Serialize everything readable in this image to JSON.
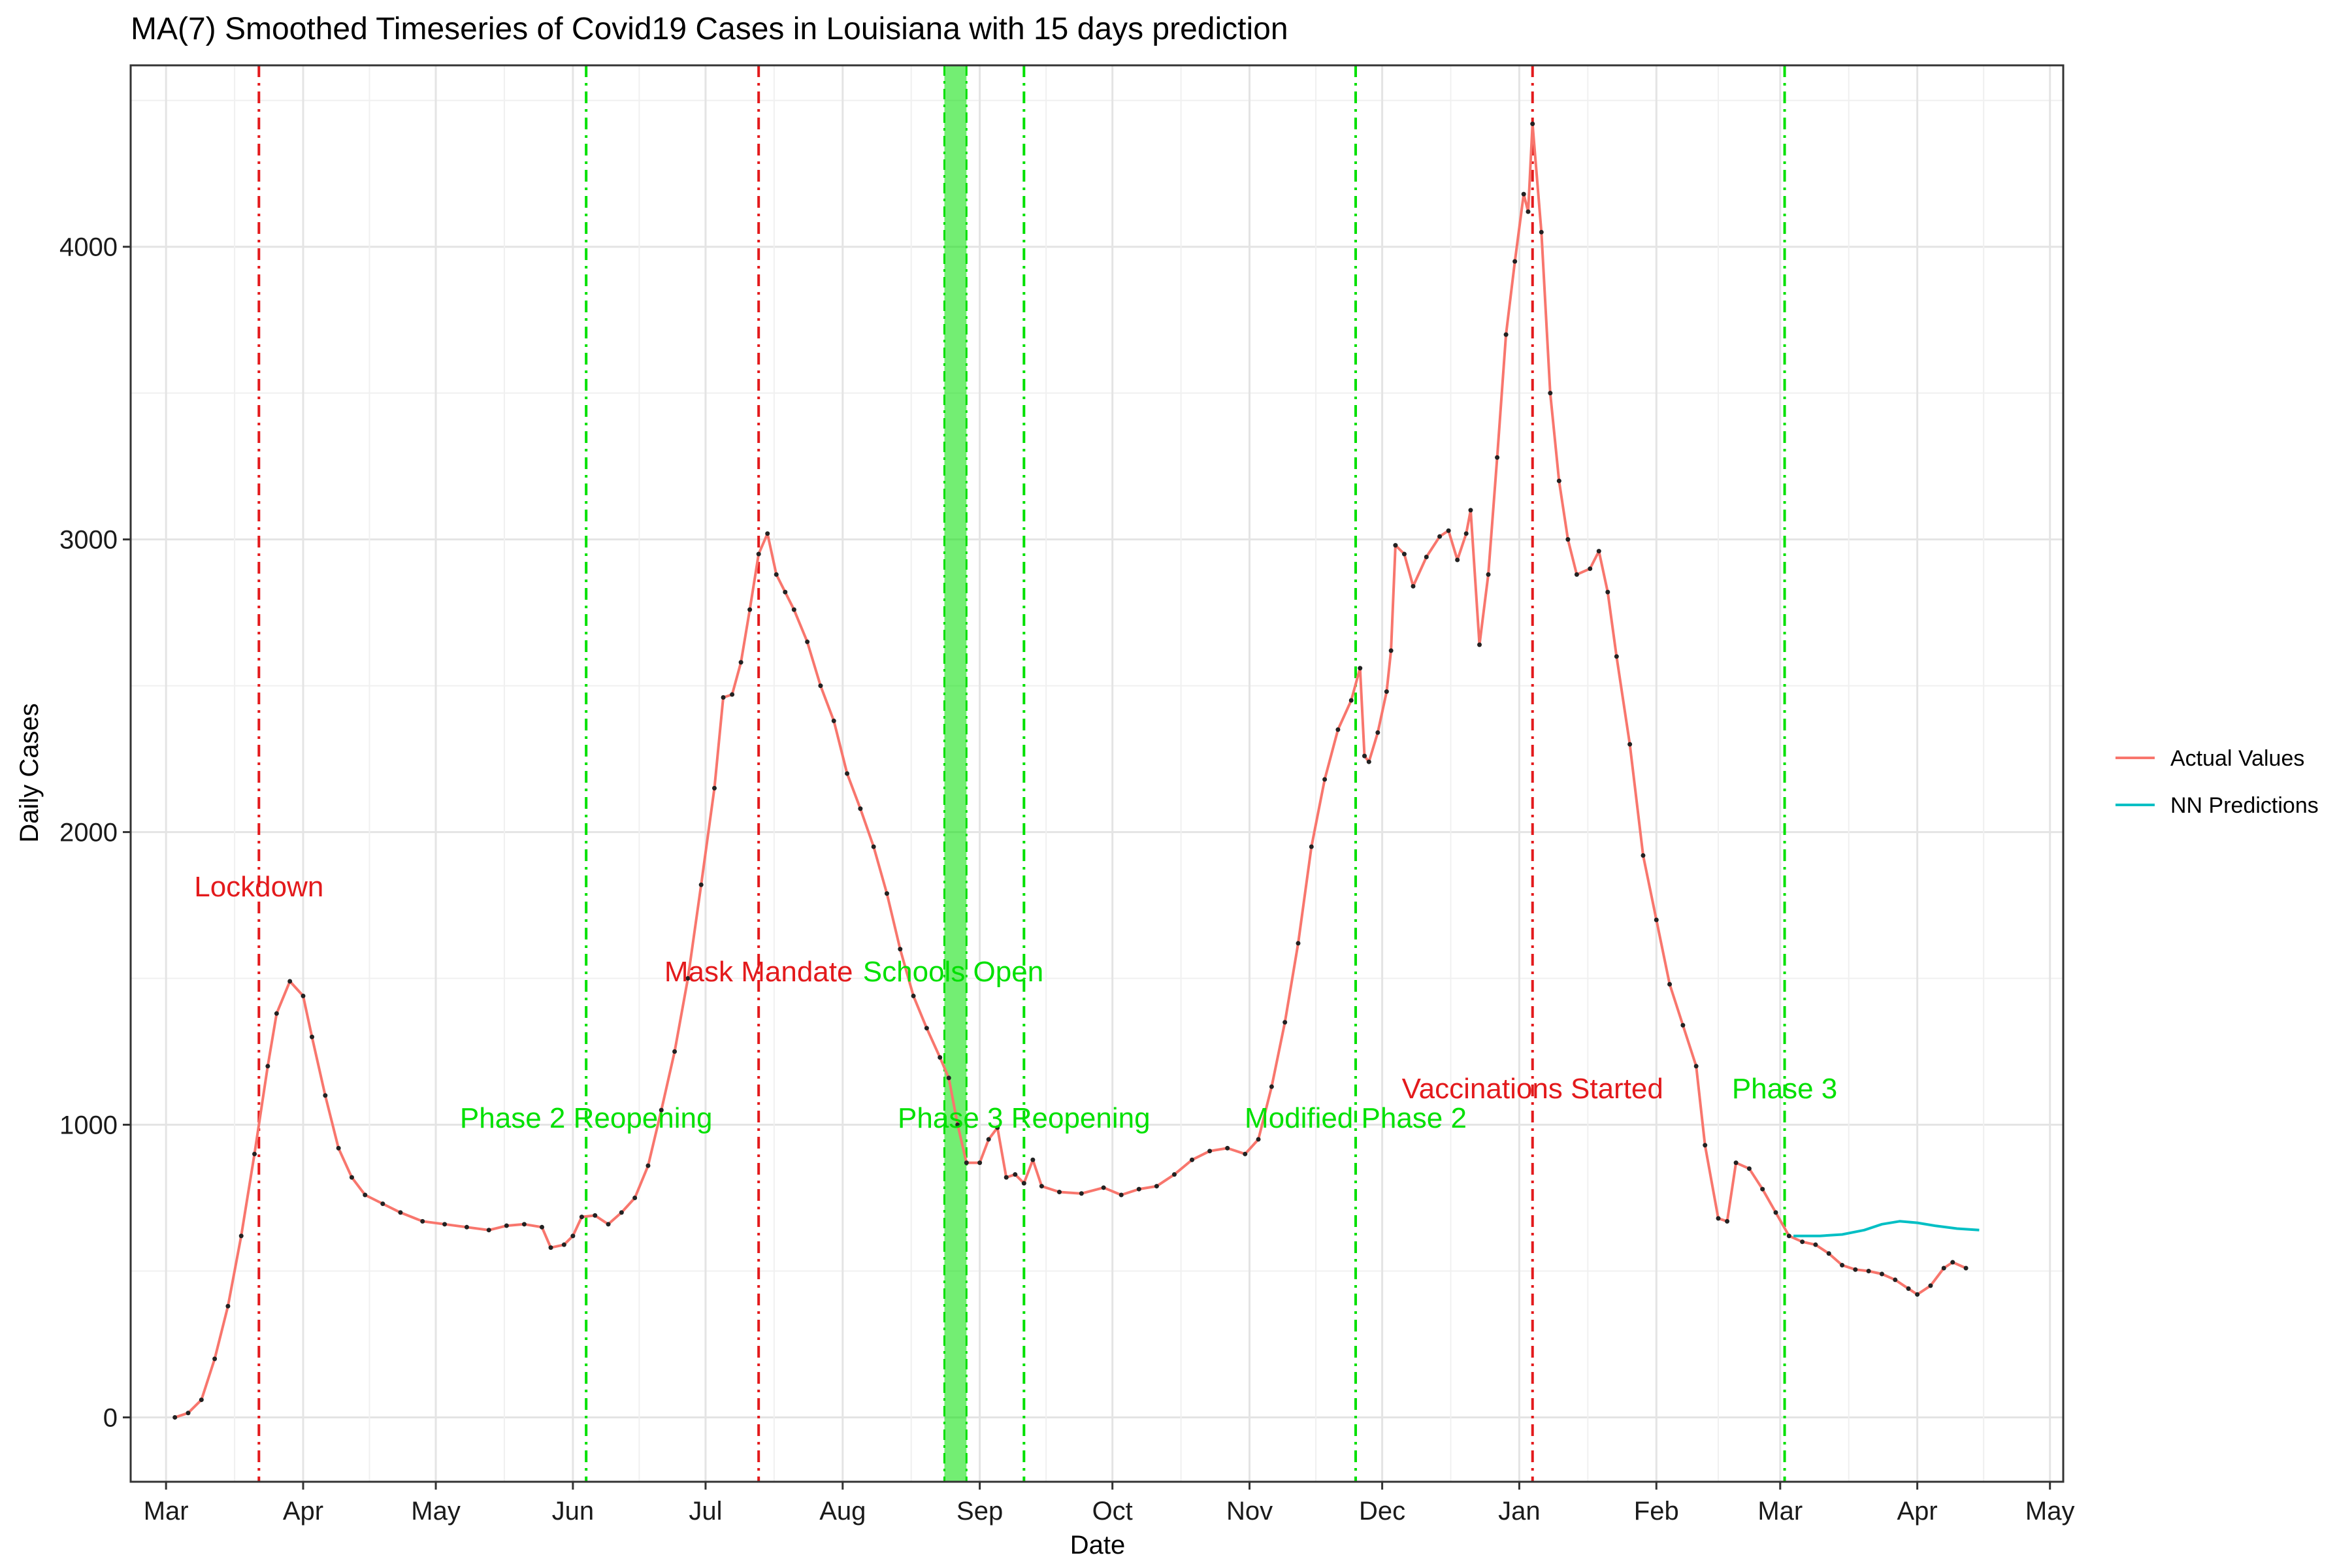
{
  "chart_data": {
    "type": "line",
    "title": "MA(7) Smoothed Timeseries of Covid19 Cases in Louisiana with 15 days prediction",
    "xlabel": "Date",
    "ylabel": "Daily Cases",
    "x_range": [
      "2020-02-22",
      "2021-05-04"
    ],
    "ylim": [
      -220,
      4620
    ],
    "grid": true,
    "legend_position": "right",
    "x_ticks": [
      {
        "date": "2020-03-01",
        "label": "Mar"
      },
      {
        "date": "2020-04-01",
        "label": "Apr"
      },
      {
        "date": "2020-05-01",
        "label": "May"
      },
      {
        "date": "2020-06-01",
        "label": "Jun"
      },
      {
        "date": "2020-07-01",
        "label": "Jul"
      },
      {
        "date": "2020-08-01",
        "label": "Aug"
      },
      {
        "date": "2020-09-01",
        "label": "Sep"
      },
      {
        "date": "2020-10-01",
        "label": "Oct"
      },
      {
        "date": "2020-11-01",
        "label": "Nov"
      },
      {
        "date": "2020-12-01",
        "label": "Dec"
      },
      {
        "date": "2021-01-01",
        "label": "Jan"
      },
      {
        "date": "2021-02-01",
        "label": "Feb"
      },
      {
        "date": "2021-03-01",
        "label": "Mar"
      },
      {
        "date": "2021-04-01",
        "label": "Apr"
      },
      {
        "date": "2021-05-01",
        "label": "May"
      }
    ],
    "y_ticks": [
      0,
      1000,
      2000,
      3000,
      4000
    ],
    "series": [
      {
        "name": "Actual Values",
        "color": "#F8766D",
        "markers": true,
        "points": [
          [
            "2020-03-03",
            0
          ],
          [
            "2020-03-06",
            15
          ],
          [
            "2020-03-09",
            60
          ],
          [
            "2020-03-12",
            200
          ],
          [
            "2020-03-15",
            380
          ],
          [
            "2020-03-18",
            620
          ],
          [
            "2020-03-21",
            900
          ],
          [
            "2020-03-24",
            1200
          ],
          [
            "2020-03-26",
            1380
          ],
          [
            "2020-03-29",
            1490
          ],
          [
            "2020-04-01",
            1440
          ],
          [
            "2020-04-03",
            1300
          ],
          [
            "2020-04-06",
            1100
          ],
          [
            "2020-04-09",
            920
          ],
          [
            "2020-04-12",
            820
          ],
          [
            "2020-04-15",
            760
          ],
          [
            "2020-04-19",
            730
          ],
          [
            "2020-04-23",
            700
          ],
          [
            "2020-04-28",
            670
          ],
          [
            "2020-05-03",
            660
          ],
          [
            "2020-05-08",
            650
          ],
          [
            "2020-05-13",
            640
          ],
          [
            "2020-05-17",
            655
          ],
          [
            "2020-05-21",
            660
          ],
          [
            "2020-05-25",
            650
          ],
          [
            "2020-05-27",
            580
          ],
          [
            "2020-05-30",
            590
          ],
          [
            "2020-06-01",
            620
          ],
          [
            "2020-06-03",
            685
          ],
          [
            "2020-06-06",
            690
          ],
          [
            "2020-06-09",
            660
          ],
          [
            "2020-06-12",
            700
          ],
          [
            "2020-06-15",
            750
          ],
          [
            "2020-06-18",
            860
          ],
          [
            "2020-06-21",
            1050
          ],
          [
            "2020-06-24",
            1250
          ],
          [
            "2020-06-27",
            1500
          ],
          [
            "2020-06-30",
            1820
          ],
          [
            "2020-07-03",
            2150
          ],
          [
            "2020-07-05",
            2460
          ],
          [
            "2020-07-07",
            2470
          ],
          [
            "2020-07-09",
            2580
          ],
          [
            "2020-07-11",
            2760
          ],
          [
            "2020-07-13",
            2950
          ],
          [
            "2020-07-15",
            3020
          ],
          [
            "2020-07-17",
            2880
          ],
          [
            "2020-07-19",
            2820
          ],
          [
            "2020-07-21",
            2760
          ],
          [
            "2020-07-24",
            2650
          ],
          [
            "2020-07-27",
            2500
          ],
          [
            "2020-07-30",
            2380
          ],
          [
            "2020-08-02",
            2200
          ],
          [
            "2020-08-05",
            2080
          ],
          [
            "2020-08-08",
            1950
          ],
          [
            "2020-08-11",
            1790
          ],
          [
            "2020-08-14",
            1600
          ],
          [
            "2020-08-17",
            1440
          ],
          [
            "2020-08-20",
            1330
          ],
          [
            "2020-08-23",
            1230
          ],
          [
            "2020-08-25",
            1160
          ],
          [
            "2020-08-27",
            1000
          ],
          [
            "2020-08-29",
            870
          ],
          [
            "2020-09-01",
            870
          ],
          [
            "2020-09-03",
            950
          ],
          [
            "2020-09-05",
            990
          ],
          [
            "2020-09-07",
            820
          ],
          [
            "2020-09-09",
            830
          ],
          [
            "2020-09-11",
            800
          ],
          [
            "2020-09-13",
            880
          ],
          [
            "2020-09-15",
            790
          ],
          [
            "2020-09-19",
            770
          ],
          [
            "2020-09-24",
            765
          ],
          [
            "2020-09-29",
            785
          ],
          [
            "2020-10-03",
            760
          ],
          [
            "2020-10-07",
            780
          ],
          [
            "2020-10-11",
            790
          ],
          [
            "2020-10-15",
            830
          ],
          [
            "2020-10-19",
            880
          ],
          [
            "2020-10-23",
            910
          ],
          [
            "2020-10-27",
            920
          ],
          [
            "2020-10-31",
            900
          ],
          [
            "2020-11-03",
            950
          ],
          [
            "2020-11-06",
            1130
          ],
          [
            "2020-11-09",
            1350
          ],
          [
            "2020-11-12",
            1620
          ],
          [
            "2020-11-15",
            1950
          ],
          [
            "2020-11-18",
            2180
          ],
          [
            "2020-11-21",
            2350
          ],
          [
            "2020-11-24",
            2450
          ],
          [
            "2020-11-26",
            2560
          ],
          [
            "2020-11-27",
            2260
          ],
          [
            "2020-11-28",
            2240
          ],
          [
            "2020-11-30",
            2340
          ],
          [
            "2020-12-02",
            2480
          ],
          [
            "2020-12-03",
            2620
          ],
          [
            "2020-12-04",
            2980
          ],
          [
            "2020-12-06",
            2950
          ],
          [
            "2020-12-08",
            2840
          ],
          [
            "2020-12-11",
            2940
          ],
          [
            "2020-12-14",
            3010
          ],
          [
            "2020-12-16",
            3030
          ],
          [
            "2020-12-18",
            2930
          ],
          [
            "2020-12-20",
            3020
          ],
          [
            "2020-12-21",
            3100
          ],
          [
            "2020-12-23",
            2640
          ],
          [
            "2020-12-25",
            2880
          ],
          [
            "2020-12-27",
            3280
          ],
          [
            "2020-12-29",
            3700
          ],
          [
            "2020-12-31",
            3950
          ],
          [
            "2021-01-02",
            4180
          ],
          [
            "2021-01-03",
            4120
          ],
          [
            "2021-01-04",
            4420
          ],
          [
            "2021-01-06",
            4050
          ],
          [
            "2021-01-08",
            3500
          ],
          [
            "2021-01-10",
            3200
          ],
          [
            "2021-01-12",
            3000
          ],
          [
            "2021-01-14",
            2880
          ],
          [
            "2021-01-17",
            2900
          ],
          [
            "2021-01-19",
            2960
          ],
          [
            "2021-01-21",
            2820
          ],
          [
            "2021-01-23",
            2600
          ],
          [
            "2021-01-26",
            2300
          ],
          [
            "2021-01-29",
            1920
          ],
          [
            "2021-02-01",
            1700
          ],
          [
            "2021-02-04",
            1480
          ],
          [
            "2021-02-07",
            1340
          ],
          [
            "2021-02-10",
            1200
          ],
          [
            "2021-02-12",
            930
          ],
          [
            "2021-02-15",
            680
          ],
          [
            "2021-02-17",
            670
          ],
          [
            "2021-02-19",
            870
          ],
          [
            "2021-02-22",
            850
          ],
          [
            "2021-02-25",
            780
          ],
          [
            "2021-02-28",
            700
          ],
          [
            "2021-03-03",
            620
          ],
          [
            "2021-03-06",
            600
          ],
          [
            "2021-03-09",
            590
          ],
          [
            "2021-03-12",
            560
          ],
          [
            "2021-03-15",
            520
          ],
          [
            "2021-03-18",
            505
          ],
          [
            "2021-03-21",
            500
          ],
          [
            "2021-03-24",
            490
          ],
          [
            "2021-03-27",
            470
          ],
          [
            "2021-03-30",
            440
          ],
          [
            "2021-04-01",
            420
          ],
          [
            "2021-04-04",
            450
          ],
          [
            "2021-04-07",
            510
          ],
          [
            "2021-04-09",
            530
          ],
          [
            "2021-04-12",
            510
          ]
        ]
      },
      {
        "name": "NN Predictions",
        "color": "#00BFC4",
        "markers": false,
        "points": [
          [
            "2021-03-04",
            620
          ],
          [
            "2021-03-10",
            620
          ],
          [
            "2021-03-15",
            625
          ],
          [
            "2021-03-20",
            640
          ],
          [
            "2021-03-24",
            660
          ],
          [
            "2021-03-28",
            670
          ],
          [
            "2021-04-01",
            665
          ],
          [
            "2021-04-05",
            655
          ],
          [
            "2021-04-10",
            645
          ],
          [
            "2021-04-15",
            640
          ]
        ]
      }
    ],
    "events": [
      {
        "date": "2020-03-22",
        "color": "#E31A1C",
        "label": "Lockdown",
        "label_y": 1780,
        "label_date": "2020-03-22"
      },
      {
        "date": "2020-06-04",
        "color": "#00E000",
        "label": "Phase 2 Reopening",
        "label_y": 990,
        "label_date": "2020-06-04"
      },
      {
        "date": "2020-07-13",
        "color": "#E31A1C",
        "label": "Mask Mandate",
        "label_y": 1490,
        "label_date": "2020-07-13"
      },
      {
        "date": "2020-09-11",
        "color": "#00E000",
        "label": "Phase 3 Reopening",
        "label_y": 990,
        "label_date": "2020-09-11"
      },
      {
        "date": "2020-11-25",
        "color": "#00E000",
        "label": "Modified Phase 2",
        "label_y": 990,
        "label_date": "2020-11-25"
      },
      {
        "date": "2021-01-04",
        "color": "#E31A1C",
        "label": "Vaccinations Started",
        "label_y": 1090,
        "label_date": "2021-01-04"
      },
      {
        "date": "2021-03-02",
        "color": "#00E000",
        "label": "Phase 3",
        "label_y": 1090,
        "label_date": "2021-03-02"
      }
    ],
    "shaded_region": {
      "start": "2020-08-24",
      "end": "2020-08-29",
      "color": "#00E000",
      "label": "Schools Open",
      "label_y": 1490,
      "label_date": "2020-08-26"
    }
  }
}
